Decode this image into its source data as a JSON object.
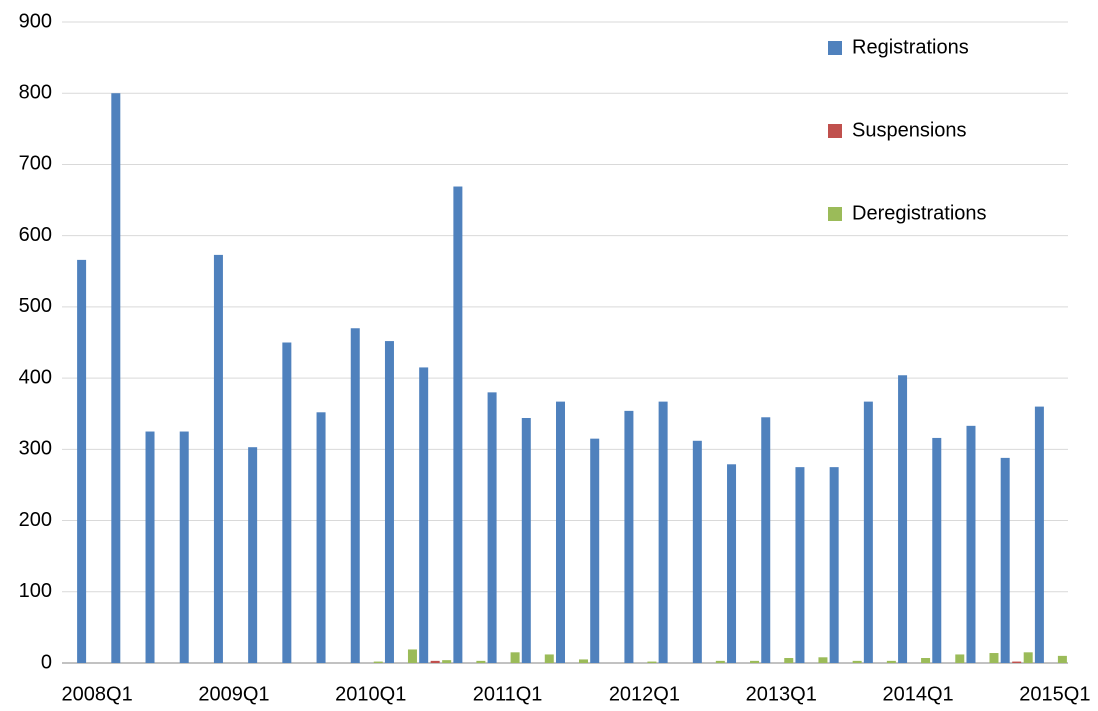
{
  "chart_data": {
    "type": "bar",
    "categories": [
      "2008Q1",
      null,
      null,
      null,
      "2009Q1",
      null,
      null,
      null,
      "2010Q1",
      null,
      null,
      null,
      "2011Q1",
      null,
      null,
      null,
      "2012Q1",
      null,
      null,
      null,
      "2013Q1",
      null,
      null,
      null,
      "2014Q1",
      null,
      null,
      null,
      "2015Q1"
    ],
    "series": [
      {
        "name": "Registrations",
        "color": "#4f81bd",
        "values": [
          566,
          800,
          325,
          325,
          573,
          303,
          450,
          352,
          470,
          452,
          415,
          669,
          380,
          344,
          367,
          315,
          354,
          367,
          312,
          279,
          345,
          275,
          275,
          367,
          404,
          316,
          333,
          288,
          360
        ]
      },
      {
        "name": "Suspensions",
        "color": "#c0504d",
        "values": [
          0,
          0,
          0,
          0,
          0,
          0,
          0,
          0,
          0,
          0,
          3,
          0,
          0,
          0,
          0,
          0,
          0,
          0,
          0,
          0,
          0,
          0,
          0,
          0,
          0,
          0,
          0,
          2,
          0
        ]
      },
      {
        "name": "Deregistrations",
        "color": "#9bbb59",
        "values": [
          0,
          0,
          0,
          0,
          0,
          0,
          0,
          0,
          2,
          19,
          4,
          3,
          15,
          12,
          5,
          0,
          2,
          0,
          3,
          3,
          7,
          8,
          3,
          3,
          7,
          12,
          14,
          15,
          10
        ]
      }
    ],
    "ylim": [
      0,
      900
    ],
    "yticks": [
      0,
      100,
      200,
      300,
      400,
      500,
      600,
      700,
      800,
      900
    ],
    "grid": true,
    "legend": "top-right"
  }
}
